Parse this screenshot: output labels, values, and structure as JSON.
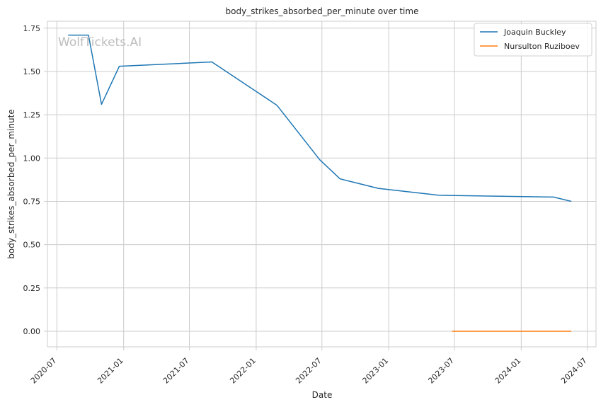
{
  "chart_data": {
    "type": "line",
    "title": "body_strikes_absorbed_per_minute over time",
    "xlabel": "Date",
    "ylabel": "body_strikes_absorbed_per_minute",
    "watermark": "WolfTickets.AI",
    "x_ticks": [
      "2020-07",
      "2021-01",
      "2021-07",
      "2022-01",
      "2022-07",
      "2023-01",
      "2023-07",
      "2024-01",
      "2024-07"
    ],
    "y_ticks": [
      "0.00",
      "0.25",
      "0.50",
      "0.75",
      "1.00",
      "1.25",
      "1.50",
      "1.75"
    ],
    "xlim": [
      "2020-06-05",
      "2024-07-25"
    ],
    "ylim": [
      -0.09,
      1.79
    ],
    "grid": true,
    "legend_position": "top-right",
    "series": [
      {
        "name": "Joaquin Buckley",
        "color": "#1f77b4",
        "x": [
          "2020-08-01",
          "2020-09-26",
          "2020-11-01",
          "2020-12-20",
          "2021-09-01",
          "2022-02-27",
          "2022-06-25",
          "2022-08-20",
          "2022-12-03",
          "2023-05-20",
          "2024-03-30",
          "2024-05-18"
        ],
        "y": [
          1.71,
          1.71,
          1.31,
          1.53,
          1.555,
          1.305,
          0.99,
          0.88,
          0.825,
          0.785,
          0.775,
          0.75
        ]
      },
      {
        "name": "Nursulton Ruziboev",
        "color": "#ff7f0e",
        "x": [
          "2023-06-24",
          "2024-05-18"
        ],
        "y": [
          0.0,
          0.0
        ]
      }
    ]
  }
}
